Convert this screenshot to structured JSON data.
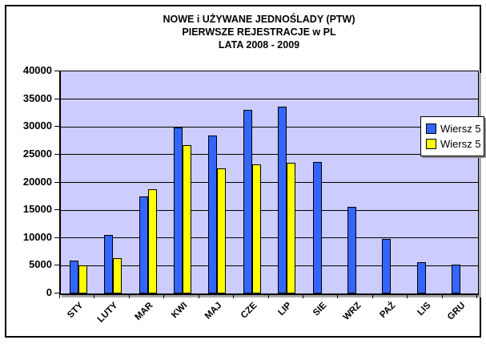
{
  "window": {
    "background": "#FFFFFF",
    "border_color": "#000000"
  },
  "chart_data": {
    "type": "bar",
    "title_lines": [
      "NOWE i UŻYWANE JEDNOŚLADY (PTW)",
      "PIERWSZE REJESTRACJE w PL",
      "LATA 2008 - 2009"
    ],
    "categories": [
      "STY",
      "LUTY",
      "MAR",
      "KWI",
      "MAJ",
      "CZE",
      "LIP",
      "SIE",
      "WRZ",
      "PAŹ",
      "LIS",
      "GRU"
    ],
    "series": [
      {
        "name": "Wiersz 5",
        "color": "#3366FF",
        "values": [
          5900,
          10500,
          17500,
          29900,
          28500,
          33100,
          33700,
          23700,
          15600,
          9800,
          5700,
          5200
        ]
      },
      {
        "name": "Wiersz 5",
        "color": "#FFFF00",
        "values": [
          5000,
          6400,
          18800,
          26700,
          22600,
          23300,
          23500,
          null,
          null,
          null,
          null,
          null
        ]
      }
    ],
    "ylim": [
      0,
      40000
    ],
    "ytick_step": 5000,
    "ytick_labels": [
      "40000",
      "35000",
      "30000",
      "25000",
      "20000",
      "15000",
      "10000",
      "5000",
      "0"
    ],
    "grid": true,
    "plot_bg": "#CCCCFF",
    "bar_border": "#000000",
    "legend": {
      "position": "right-overlapping-plot",
      "entries": [
        "Wiersz 5",
        "Wiersz 5"
      ]
    }
  }
}
